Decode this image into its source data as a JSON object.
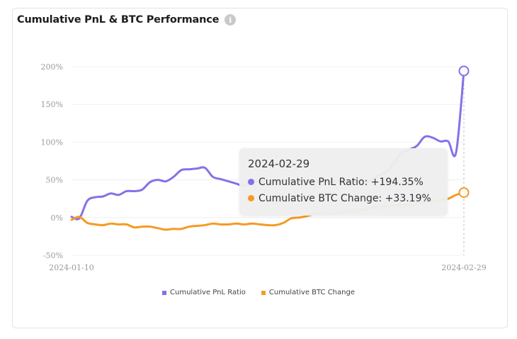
{
  "card": {
    "title": "Cumulative PnL & BTC Performance",
    "info_icon": "info-icon"
  },
  "tooltip": {
    "date": "2024-02-29",
    "rows": [
      {
        "label": "Cumulative PnL Ratio: +194.35%",
        "color": "#8471e8"
      },
      {
        "label": "Cumulative BTC Change: +33.19%",
        "color": "#f59a23"
      }
    ]
  },
  "legend": [
    {
      "label": "Cumulative PnL Ratio",
      "color": "#8471e8"
    },
    {
      "label": "Cumulative BTC Change",
      "color": "#f59a23"
    }
  ],
  "chart_data": {
    "type": "line",
    "title": "Cumulative PnL & BTC Performance",
    "x_ticks": [
      "2024-01-10",
      "2024-02-29"
    ],
    "x_range": [
      "2024-01-10",
      "2024-02-29"
    ],
    "y_ticks": [
      "200%",
      "150%",
      "100%",
      "50%",
      "0%",
      "-50%"
    ],
    "ylim": [
      -50,
      200
    ],
    "y_unit": "%",
    "grid": true,
    "legend_position": "bottom",
    "series": [
      {
        "name": "Cumulative PnL Ratio",
        "color": "#8471e8",
        "x": [
          "2024-01-10",
          "2024-01-11",
          "2024-01-12",
          "2024-01-13",
          "2024-01-14",
          "2024-01-15",
          "2024-01-16",
          "2024-01-17",
          "2024-01-18",
          "2024-01-19",
          "2024-01-20",
          "2024-01-21",
          "2024-01-22",
          "2024-01-23",
          "2024-01-24",
          "2024-01-25",
          "2024-01-26",
          "2024-01-27",
          "2024-01-28",
          "2024-01-29",
          "2024-01-30",
          "2024-01-31",
          "2024-02-01",
          "2024-02-02",
          "2024-02-03",
          "2024-02-04",
          "2024-02-05",
          "2024-02-06",
          "2024-02-07",
          "2024-02-08",
          "2024-02-09",
          "2024-02-10",
          "2024-02-11",
          "2024-02-12",
          "2024-02-13",
          "2024-02-14",
          "2024-02-15",
          "2024-02-16",
          "2024-02-17",
          "2024-02-18",
          "2024-02-19",
          "2024-02-20",
          "2024-02-21",
          "2024-02-22",
          "2024-02-23",
          "2024-02-24",
          "2024-02-25",
          "2024-02-26",
          "2024-02-27",
          "2024-02-28",
          "2024-02-29"
        ],
        "values": [
          1,
          -1,
          22,
          27,
          28,
          32,
          30,
          35,
          35,
          37,
          47,
          50,
          48,
          54,
          63,
          64,
          65,
          66,
          54,
          51,
          48,
          45,
          42,
          48,
          48,
          48,
          48,
          48,
          48,
          48,
          48,
          48,
          48,
          48,
          48,
          48,
          48,
          48,
          48,
          55,
          60,
          70,
          85,
          90,
          95,
          107,
          106,
          101,
          101,
          86,
          194.35
        ]
      },
      {
        "name": "Cumulative BTC Change",
        "color": "#f59a23",
        "x": [
          "2024-01-10",
          "2024-01-11",
          "2024-01-12",
          "2024-01-13",
          "2024-01-14",
          "2024-01-15",
          "2024-01-16",
          "2024-01-17",
          "2024-01-18",
          "2024-01-19",
          "2024-01-20",
          "2024-01-21",
          "2024-01-22",
          "2024-01-23",
          "2024-01-24",
          "2024-01-25",
          "2024-01-26",
          "2024-01-27",
          "2024-01-28",
          "2024-01-29",
          "2024-01-30",
          "2024-01-31",
          "2024-02-01",
          "2024-02-02",
          "2024-02-03",
          "2024-02-04",
          "2024-02-05",
          "2024-02-06",
          "2024-02-07",
          "2024-02-08",
          "2024-02-09",
          "2024-02-10",
          "2024-02-11",
          "2024-02-12",
          "2024-02-13",
          "2024-02-14",
          "2024-02-15",
          "2024-02-16",
          "2024-02-17",
          "2024-02-18",
          "2024-02-19",
          "2024-02-20",
          "2024-02-21",
          "2024-02-22",
          "2024-02-23",
          "2024-02-24",
          "2024-02-25",
          "2024-02-26",
          "2024-02-27",
          "2024-02-28",
          "2024-02-29"
        ],
        "values": [
          -3,
          1,
          -7,
          -9,
          -10,
          -8,
          -9,
          -9,
          -13,
          -12,
          -12,
          -14,
          -16,
          -15,
          -15,
          -12,
          -11,
          -10,
          -8,
          -9,
          -9,
          -8,
          -9,
          -8,
          -9,
          -10,
          -10,
          -7,
          -1,
          0,
          2,
          5,
          6,
          5,
          7,
          8,
          8,
          10,
          12,
          14,
          15,
          16,
          17,
          16,
          18,
          20,
          22,
          23,
          25,
          30,
          33.19
        ]
      }
    ],
    "highlight_x": "2024-02-29"
  }
}
